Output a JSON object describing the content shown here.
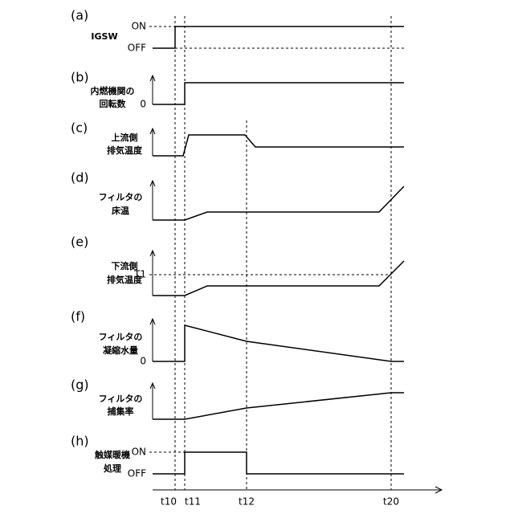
{
  "panels": [
    {
      "id": "(a)",
      "label": [
        "IGSW"
      ],
      "levels": [
        "ON",
        "OFF"
      ]
    },
    {
      "id": "(b)",
      "label": [
        "内燃機関の",
        "回転数"
      ],
      "levels": [
        "0"
      ]
    },
    {
      "id": "(c)",
      "label": [
        "上流側",
        "排気温度"
      ]
    },
    {
      "id": "(d)",
      "label": [
        "フィルタの",
        "床温"
      ]
    },
    {
      "id": "(e)",
      "label": [
        "下流側",
        "排気温度"
      ],
      "levels": [
        "T1"
      ]
    },
    {
      "id": "(f)",
      "label": [
        "フィルタの",
        "凝縮水量"
      ],
      "levels": [
        "0"
      ]
    },
    {
      "id": "(g)",
      "label": [
        "フィルタの",
        "捕集率"
      ]
    },
    {
      "id": "(h)",
      "label": [
        "触媒暖機",
        "処理"
      ],
      "levels": [
        "ON",
        "OFF"
      ]
    }
  ],
  "time_labels": [
    "t10",
    "t11",
    "t12",
    "t20"
  ]
}
